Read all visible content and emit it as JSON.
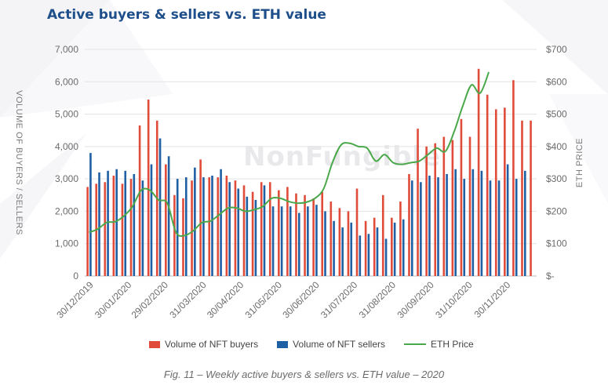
{
  "title": "Active buyers & sellers vs. ETH value",
  "caption": "Fig. 11 – Weekly active buyers & sellers vs. ETH value – 2020",
  "watermark": "NonFungible",
  "colors": {
    "buyers": "#e04b3a",
    "sellers": "#1f5fa3",
    "eth": "#4aa84a",
    "title": "#1f4f8b"
  },
  "chart_data": {
    "type": "bar",
    "ylabel": "VOLUME OF BUYERS / SELLERS",
    "y2label": "ETH PRICE",
    "ylim": [
      0,
      7000
    ],
    "y2lim": [
      0,
      700
    ],
    "yticks": [
      "0",
      "1,000",
      "2,000",
      "3,000",
      "4,000",
      "5,000",
      "6,000",
      "7,000"
    ],
    "y2ticks": [
      "$-",
      "$100",
      "$200",
      "$300",
      "$400",
      "$500",
      "$600",
      "$700"
    ],
    "x_tick_labels": [
      "30/12/2019",
      "30/01/2020",
      "29/02/2020",
      "31/03/2020",
      "30/04/2020",
      "31/05/2020",
      "30/06/2020",
      "31/07/2020",
      "31/08/2020",
      "30/09/2020",
      "31/10/2020",
      "30/11/2020"
    ],
    "x_tick_weeks": [
      0,
      4.4,
      8.6,
      13,
      17.3,
      21.7,
      26,
      30.4,
      34.8,
      39.2,
      43.6,
      48
    ],
    "grid": true,
    "legend": "bottom",
    "series": [
      {
        "name": "Volume of NFT buyers",
        "axis": "left",
        "values": [
          2750,
          2850,
          2900,
          3100,
          2850,
          3000,
          4650,
          5450,
          4800,
          3450,
          2500,
          2400,
          2950,
          3600,
          3050,
          3050,
          3100,
          2950,
          2800,
          2600,
          2900,
          2900,
          2650,
          2750,
          2550,
          2500,
          2400,
          2600,
          2300,
          2100,
          2000,
          2700,
          1700,
          1800,
          2500,
          1800,
          2300,
          3150,
          4550,
          4000,
          4100,
          4300,
          4200,
          4850,
          4300,
          6400,
          5600,
          5150,
          5200,
          6050,
          4800,
          4800
        ]
      },
      {
        "name": "Volume of NFT sellers",
        "axis": "left",
        "values": [
          3800,
          3200,
          3250,
          3300,
          3250,
          3150,
          2950,
          3450,
          4250,
          3700,
          3000,
          3050,
          3350,
          3050,
          3100,
          3300,
          2900,
          2700,
          2450,
          2350,
          2800,
          2150,
          2150,
          2150,
          1950,
          2150,
          2200,
          2000,
          1700,
          1500,
          1650,
          1250,
          1300,
          1500,
          1150,
          1650,
          1750,
          2950,
          2900,
          3100,
          3050,
          3150,
          3300,
          3000,
          3300,
          3250,
          2950,
          2950,
          3450,
          3000,
          3250,
          0
        ]
      },
      {
        "name": "ETH Price",
        "axis": "right",
        "values": [
          135,
          145,
          165,
          168,
          185,
          215,
          265,
          265,
          235,
          225,
          135,
          125,
          140,
          165,
          170,
          190,
          210,
          210,
          200,
          205,
          215,
          240,
          240,
          230,
          225,
          228,
          240,
          270,
          350,
          405,
          410,
          400,
          395,
          355,
          375,
          350,
          345,
          350,
          355,
          375,
          395,
          385,
          445,
          525,
          590,
          565,
          630
        ]
      }
    ]
  }
}
